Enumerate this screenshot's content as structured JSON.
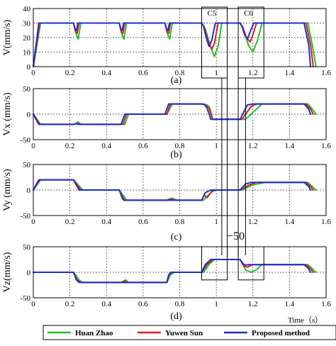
{
  "chart_data": {
    "type": "line",
    "xlabel": "Time（s）",
    "xlim": [
      0,
      1.6
    ],
    "xticks": [
      0,
      0.2,
      0.4,
      0.6,
      0.8,
      1,
      1.2,
      1.4,
      1.6
    ],
    "x_tick_labels": [
      "0",
      "0.2",
      "0.4",
      "0.6",
      "0.8",
      "1",
      "1.2",
      "1.4",
      "1.6"
    ],
    "grid": true,
    "legend_placement": "bottom",
    "series_styles": [
      {
        "name": "Huan Zhao",
        "color": "#22c02a"
      },
      {
        "name": "Yuwen Sun",
        "color": "#e01b1b"
      },
      {
        "name": "Proposed method",
        "color": "#1b2fd0"
      }
    ],
    "overlay_annotation": "−50",
    "panels": [
      {
        "label": "(a)",
        "ylabel": "V(mm/s)",
        "ylim": [
          0,
          40
        ],
        "yticks": [
          0,
          10,
          20,
          30,
          40
        ],
        "y_tick_labels": [
          "0",
          "10",
          "20",
          "30",
          "40"
        ],
        "callouts": [
          {
            "label": "C5",
            "x_range": [
              0.92,
              1.06
            ],
            "y_range": [
              0,
              40
            ]
          },
          {
            "label": "C6",
            "x_range": [
              1.12,
              1.26
            ],
            "y_range": [
              0,
              40
            ]
          }
        ],
        "series": [
          {
            "name": "Huan Zhao",
            "x": [
              0,
              0.04,
              0.22,
              0.235,
              0.245,
              0.26,
              0.47,
              0.485,
              0.495,
              0.51,
              0.72,
              0.735,
              0.745,
              0.76,
              0.92,
              0.94,
              0.965,
              0.99,
              1.01,
              1.03,
              1.13,
              1.15,
              1.175,
              1.2,
              1.225,
              1.25,
              1.5,
              1.525,
              1.545
            ],
            "y": [
              0,
              30,
              30,
              22,
              19,
              30,
              30,
              22,
              19,
              30,
              30,
              22,
              19,
              30,
              30,
              26,
              15,
              7,
              14,
              30,
              30,
              25,
              15,
              10,
              18,
              30,
              30,
              15,
              0
            ]
          },
          {
            "name": "Yuwen Sun",
            "x": [
              0,
              0.035,
              0.22,
              0.23,
              0.24,
              0.25,
              0.47,
              0.48,
              0.49,
              0.5,
              0.72,
              0.73,
              0.74,
              0.75,
              0.92,
              0.935,
              0.955,
              0.975,
              0.99,
              1.01,
              1.13,
              1.145,
              1.165,
              1.185,
              1.2,
              1.22,
              1.49,
              1.515,
              1.53
            ],
            "y": [
              0,
              30,
              30,
              24,
              23,
              30,
              30,
              24,
              23,
              30,
              30,
              24,
              23,
              30,
              30,
              27,
              18,
              12,
              16,
              30,
              30,
              27,
              20,
              17,
              22,
              30,
              30,
              15,
              0
            ]
          },
          {
            "name": "Proposed method",
            "x": [
              0,
              0.03,
              0.22,
              0.228,
              0.236,
              0.244,
              0.47,
              0.478,
              0.486,
              0.494,
              0.72,
              0.728,
              0.736,
              0.744,
              0.92,
              0.93,
              0.945,
              0.96,
              0.975,
              0.995,
              1.13,
              1.14,
              1.155,
              1.17,
              1.185,
              1.205,
              1.48,
              1.505,
              1.515
            ],
            "y": [
              0,
              30,
              30,
              26,
              25,
              30,
              30,
              26,
              25,
              30,
              30,
              26,
              25,
              30,
              30,
              28,
              20,
              14,
              18,
              30,
              30,
              28,
              22,
              19,
              24,
              30,
              30,
              15,
              0
            ]
          }
        ]
      },
      {
        "label": "(b)",
        "ylabel": "Vx (mm/s)",
        "ylim": [
          -50,
          50
        ],
        "yticks": [
          -50,
          0,
          50
        ],
        "y_tick_labels": [
          "-50",
          "0",
          "50"
        ],
        "callouts": [],
        "series": [
          {
            "name": "Huan Zhao",
            "x": [
              0,
              0.04,
              0.22,
              0.235,
              0.245,
              0.26,
              0.5,
              0.52,
              0.73,
              0.76,
              0.93,
              0.955,
              0.965,
              0.98,
              1.02,
              1.04,
              1.16,
              1.22,
              1.25,
              1.5,
              1.525,
              1.545
            ],
            "y": [
              0,
              -20,
              -20,
              -18,
              -15,
              -20,
              -20,
              0,
              0,
              20,
              20,
              17,
              12,
              -10,
              -10,
              -10,
              -10,
              10,
              20,
              20,
              10,
              0
            ]
          },
          {
            "name": "Yuwen Sun",
            "x": [
              0,
              0.035,
              0.22,
              0.23,
              0.24,
              0.25,
              0.49,
              0.51,
              0.73,
              0.75,
              0.92,
              0.94,
              0.96,
              0.98,
              1.02,
              1.04,
              1.14,
              1.19,
              1.22,
              1.49,
              1.515,
              1.53
            ],
            "y": [
              0,
              -20,
              -20,
              -19,
              -18,
              -20,
              -20,
              0,
              0,
              20,
              20,
              18,
              12,
              -10,
              -10,
              -10,
              -10,
              15,
              20,
              20,
              10,
              0
            ]
          },
          {
            "name": "Proposed method",
            "x": [
              0,
              0.03,
              0.22,
              0.228,
              0.236,
              0.244,
              0.48,
              0.5,
              0.72,
              0.74,
              0.92,
              0.935,
              0.95,
              0.97,
              1.02,
              1.04,
              1.13,
              1.17,
              1.2,
              1.48,
              1.505,
              1.515
            ],
            "y": [
              0,
              -20,
              -20,
              -19,
              -19,
              -20,
              -20,
              0,
              0,
              20,
              20,
              19,
              12,
              -10,
              -10,
              -10,
              -10,
              18,
              20,
              20,
              10,
              0
            ]
          }
        ]
      },
      {
        "label": "(c)",
        "ylabel": "Vy (mm/s)",
        "ylim": [
          -50,
          50
        ],
        "yticks": [
          -50,
          0,
          50
        ],
        "y_tick_labels": [
          "-50",
          "0",
          "50"
        ],
        "callouts": [],
        "series": [
          {
            "name": "Huan Zhao",
            "x": [
              0,
              0.04,
              0.22,
              0.27,
              0.47,
              0.5,
              0.51,
              0.73,
              0.74,
              0.76,
              0.77,
              0.79,
              0.93,
              0.97,
              1.0,
              1.06,
              1.14,
              1.2,
              1.27,
              1.5,
              1.525,
              1.545
            ],
            "y": [
              0,
              20,
              20,
              0,
              0,
              -15,
              -20,
              -20,
              -18,
              -16,
              -18,
              -20,
              -20,
              -5,
              0,
              0,
              0,
              10,
              15,
              15,
              7,
              0
            ]
          },
          {
            "name": "Yuwen Sun",
            "x": [
              0,
              0.035,
              0.22,
              0.26,
              0.47,
              0.49,
              0.5,
              0.73,
              0.74,
              0.75,
              0.76,
              0.78,
              0.92,
              0.935,
              0.95,
              0.98,
              1.05,
              1.13,
              1.18,
              1.22,
              1.49,
              1.515,
              1.53
            ],
            "y": [
              0,
              20,
              20,
              0,
              0,
              -15,
              -20,
              -20,
              -19,
              -18,
              -19,
              -20,
              -20,
              -10,
              -15,
              0,
              0,
              0,
              10,
              15,
              15,
              7,
              0
            ]
          },
          {
            "name": "Proposed method",
            "x": [
              0,
              0.03,
              0.22,
              0.25,
              0.47,
              0.485,
              0.495,
              0.73,
              0.76,
              0.92,
              0.94,
              0.97,
              1.04,
              1.13,
              1.16,
              1.19,
              1.48,
              1.505,
              1.515
            ],
            "y": [
              0,
              20,
              20,
              0,
              0,
              -15,
              -20,
              -20,
              -20,
              -20,
              -5,
              0,
              0,
              0,
              12,
              15,
              15,
              7,
              0
            ]
          }
        ]
      },
      {
        "label": "(d)",
        "ylabel": "Vz(mm/s)",
        "ylim": [
          -50,
          50
        ],
        "yticks": [
          -50,
          0,
          50
        ],
        "y_tick_labels": [
          "-50",
          "0",
          "50"
        ],
        "callouts": [
          {
            "label": "",
            "x_range": [
              0.92,
              1.06
            ],
            "y_range": [
              -15,
              50
            ]
          },
          {
            "label": "",
            "x_range": [
              1.12,
              1.26
            ],
            "y_range": [
              -15,
              50
            ]
          }
        ],
        "series": [
          {
            "name": "Huan Zhao",
            "x": [
              0,
              0.22,
              0.25,
              0.27,
              0.48,
              0.495,
              0.505,
              0.52,
              0.73,
              0.75,
              0.77,
              0.93,
              0.96,
              0.99,
              1.06,
              1.13,
              1.16,
              1.19,
              1.22,
              1.25,
              1.5,
              1.525,
              1.545
            ],
            "y": [
              0,
              0,
              -15,
              -20,
              -20,
              -17,
              -15,
              -20,
              -20,
              -5,
              0,
              0,
              15,
              25,
              25,
              25,
              5,
              0,
              5,
              15,
              15,
              7,
              0
            ]
          },
          {
            "name": "Yuwen Sun",
            "x": [
              0,
              0.22,
              0.24,
              0.26,
              0.48,
              0.49,
              0.5,
              0.51,
              0.73,
              0.74,
              0.76,
              0.92,
              0.95,
              0.98,
              1.06,
              1.13,
              1.15,
              1.17,
              1.2,
              1.49,
              1.515,
              1.53
            ],
            "y": [
              0,
              0,
              -15,
              -20,
              -20,
              -18,
              -17,
              -20,
              -20,
              -5,
              0,
              0,
              15,
              25,
              25,
              25,
              12,
              10,
              15,
              15,
              7,
              0
            ]
          },
          {
            "name": "Proposed method",
            "x": [
              0,
              0.22,
              0.235,
              0.25,
              0.48,
              0.5,
              0.73,
              0.74,
              0.75,
              0.92,
              0.94,
              0.97,
              1.06,
              1.13,
              1.145,
              1.16,
              1.18,
              1.48,
              1.505,
              1.515
            ],
            "y": [
              0,
              0,
              -15,
              -20,
              -20,
              -20,
              -20,
              -5,
              0,
              0,
              15,
              25,
              25,
              25,
              17,
              14,
              15,
              15,
              7,
              0
            ]
          }
        ]
      }
    ]
  }
}
